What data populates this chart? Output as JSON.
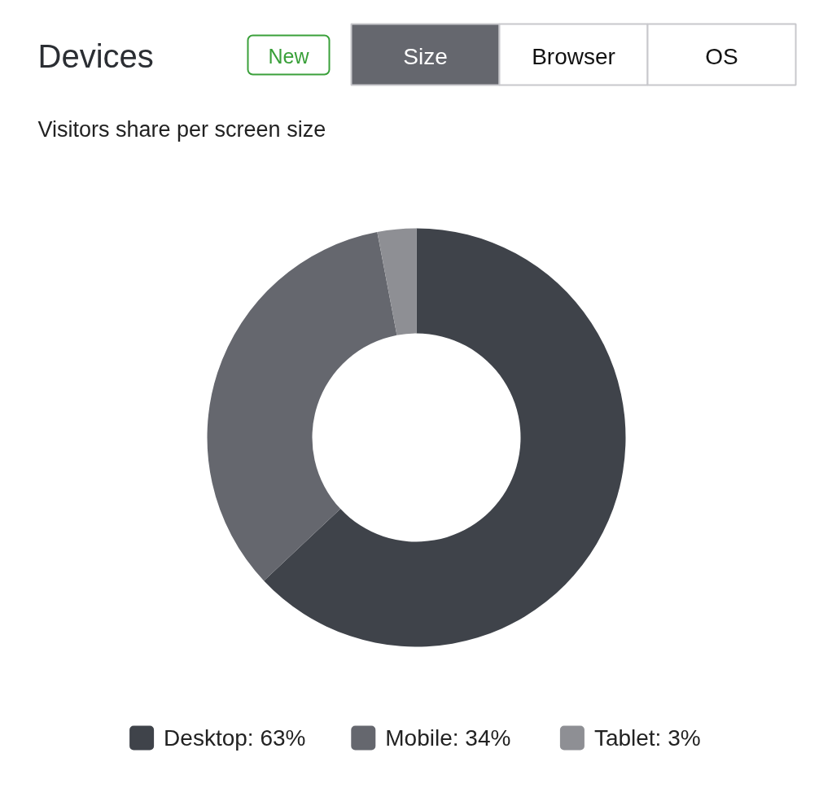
{
  "chart_data": {
    "type": "donut",
    "title": "Devices",
    "subtitle": "Visitors share per screen size",
    "categories": [
      "Desktop",
      "Mobile",
      "Tablet"
    ],
    "values": [
      63,
      34,
      3
    ],
    "value_labels": [
      "63%",
      "34%",
      "3%"
    ],
    "colors": [
      "#3f434a",
      "#65676e",
      "#8e8f94"
    ],
    "legend": "bottom",
    "annotations": [
      "New",
      "Size",
      "Browser",
      "OS"
    ]
  }
}
